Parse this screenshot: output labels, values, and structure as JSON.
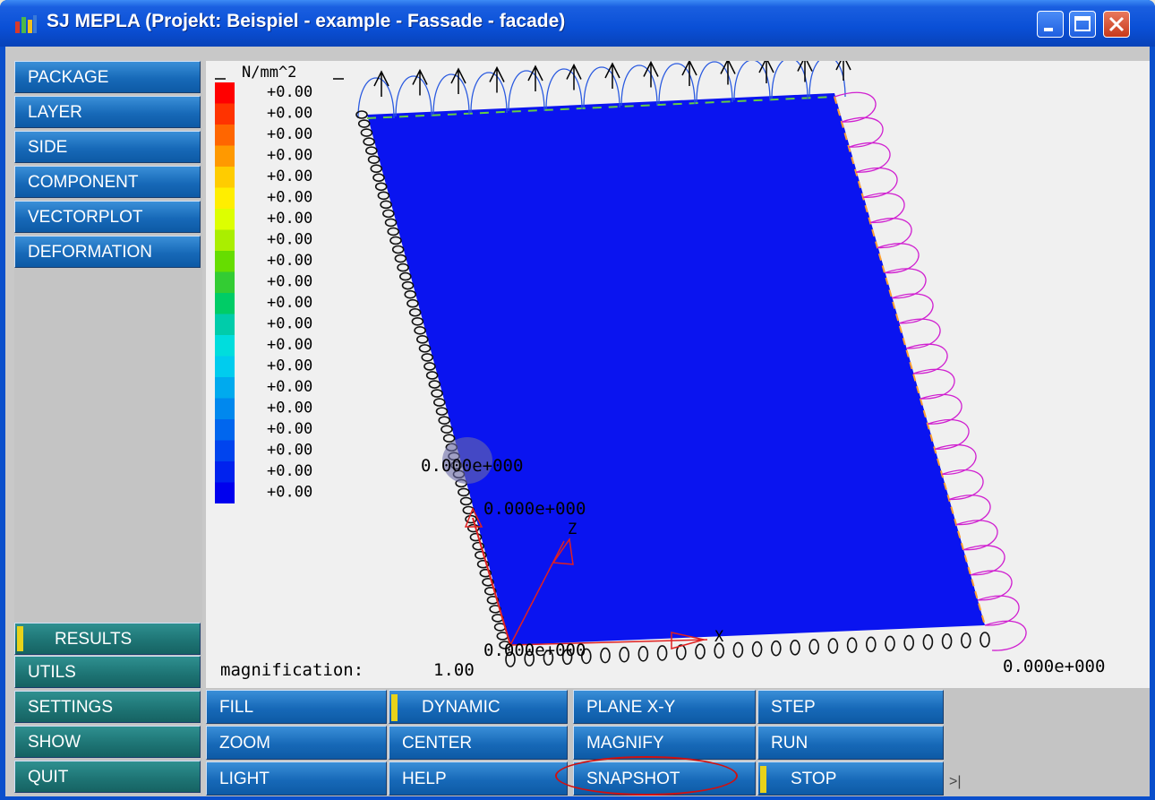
{
  "window": {
    "title": "SJ MEPLA (Projekt: Beispiel - example - Fassade - facade)"
  },
  "sidebar": {
    "items": [
      {
        "label": "PACKAGE"
      },
      {
        "label": "LAYER"
      },
      {
        "label": "SIDE"
      },
      {
        "label": "COMPONENT"
      },
      {
        "label": "VECTORPLOT"
      },
      {
        "label": "DEFORMATION"
      }
    ],
    "bottom_items": [
      {
        "label": "RESULTS",
        "active": true
      },
      {
        "label": "UTILS"
      },
      {
        "label": "SETTINGS"
      },
      {
        "label": "SHOW"
      },
      {
        "label": "QUIT"
      }
    ]
  },
  "legend": {
    "unit": "N/mm^2",
    "values": [
      "+0.00",
      "+0.00",
      "+0.00",
      "+0.00",
      "+0.00",
      "+0.00",
      "+0.00",
      "+0.00",
      "+0.00",
      "+0.00",
      "+0.00",
      "+0.00",
      "+0.00",
      "+0.00",
      "+0.00",
      "+0.00",
      "+0.00",
      "+0.00",
      "+0.00",
      "+0.00"
    ],
    "colors": [
      "#ff0000",
      "#ff3300",
      "#ff6600",
      "#ff9900",
      "#ffcc00",
      "#ffee00",
      "#ddff00",
      "#aaee00",
      "#66dd00",
      "#33cc33",
      "#00cc66",
      "#00ccaa",
      "#00dddd",
      "#00ccee",
      "#00aaee",
      "#0088ee",
      "#0066ee",
      "#0044ee",
      "#0022ee",
      "#0000ee"
    ]
  },
  "viewport": {
    "magnification_label": "magnification:",
    "magnification_value": "1.00",
    "annotations": {
      "left_value": "0.000e+000",
      "left_value2": "0.000e+000",
      "bottom_value": "0.000e+000",
      "right_value": "0.000e+000"
    },
    "axes": {
      "z": "Z",
      "x": "X"
    },
    "plate_color": "#0a14f0"
  },
  "toolbar": {
    "row1": [
      {
        "label": "FILL"
      },
      {
        "label": "DYNAMIC",
        "active": true
      },
      {
        "label": "PLANE X-Y"
      },
      {
        "label": "STEP"
      }
    ],
    "row2": [
      {
        "label": "ZOOM"
      },
      {
        "label": "CENTER"
      },
      {
        "label": "MAGNIFY"
      },
      {
        "label": "RUN"
      }
    ],
    "row3": [
      {
        "label": "LIGHT"
      },
      {
        "label": "HELP"
      },
      {
        "label": "SNAPSHOT",
        "highlighted": true
      },
      {
        "label": "STOP",
        "active": true
      }
    ],
    "cursor_glyph": ">|"
  }
}
